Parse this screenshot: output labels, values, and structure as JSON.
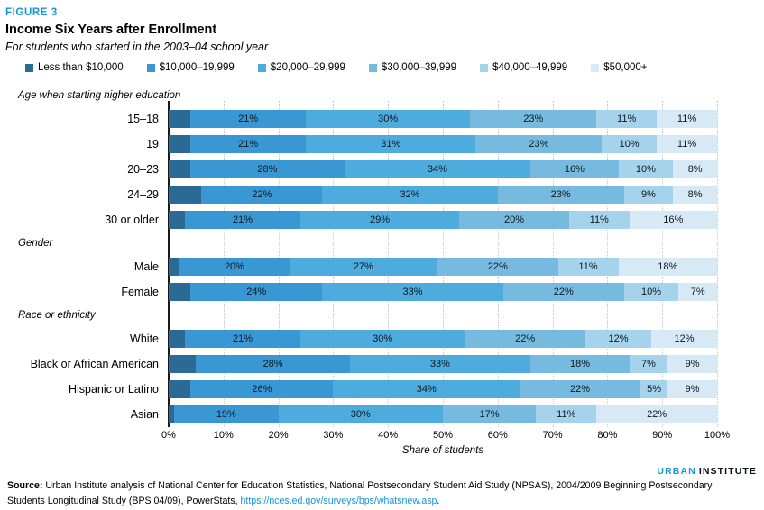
{
  "figure": {
    "label": "FIGURE 3",
    "title": "Income Six Years after Enrollment",
    "subtitle": "For students who started in the 2003–04 school year"
  },
  "colors": {
    "accent": "#1696d2",
    "series": [
      "#2b6a95",
      "#3997d3",
      "#4dabde",
      "#76badf",
      "#a5d3eb",
      "#d6e9f5"
    ]
  },
  "chart_data": {
    "type": "bar",
    "stacked": true,
    "orientation": "horizontal",
    "title": "Income Six Years after Enrollment",
    "xlabel": "Share of students",
    "xlim": [
      0,
      100
    ],
    "x_ticks": [
      "0%",
      "10%",
      "20%",
      "30%",
      "40%",
      "50%",
      "60%",
      "70%",
      "80%",
      "90%",
      "100%"
    ],
    "grid": "dotted-vertical",
    "legend_position": "top",
    "series_names": [
      "Less than $10,000",
      "$10,000–19,999",
      "$20,000–29,999",
      "$30,000–39,999",
      "$40,000–49,999",
      "$50,000+"
    ],
    "groups": [
      {
        "section": "Age when starting higher education",
        "rows": [
          {
            "label": "15–18",
            "values": [
              4,
              21,
              30,
              23,
              11,
              11
            ]
          },
          {
            "label": "19",
            "values": [
              4,
              21,
              31,
              23,
              10,
              11
            ]
          },
          {
            "label": "20–23",
            "values": [
              4,
              28,
              34,
              16,
              10,
              8
            ]
          },
          {
            "label": "24–29",
            "values": [
              6,
              22,
              32,
              23,
              9,
              8
            ]
          },
          {
            "label": "30 or older",
            "values": [
              3,
              21,
              29,
              20,
              11,
              16
            ]
          }
        ]
      },
      {
        "section": "Gender",
        "rows": [
          {
            "label": "Male",
            "values": [
              2,
              20,
              27,
              22,
              11,
              18
            ]
          },
          {
            "label": "Female",
            "values": [
              4,
              24,
              33,
              22,
              10,
              7
            ]
          }
        ]
      },
      {
        "section": "Race or ethnicity",
        "rows": [
          {
            "label": "White",
            "values": [
              3,
              21,
              30,
              22,
              12,
              12
            ]
          },
          {
            "label": "Black or African American",
            "values": [
              5,
              28,
              33,
              18,
              7,
              9
            ]
          },
          {
            "label": "Hispanic or Latino",
            "values": [
              4,
              26,
              34,
              22,
              5,
              9
            ]
          },
          {
            "label": "Asian",
            "values": [
              1,
              19,
              30,
              17,
              11,
              22
            ]
          }
        ]
      }
    ]
  },
  "footer": {
    "logo": {
      "urban": "URBAN",
      "institute": "INSTITUTE"
    },
    "source_label": "Source:",
    "source_text": " Urban Institute analysis of National Center for Education Statistics, National Postsecondary Student Aid Study (NPSAS), 2004/2009 Beginning Postsecondary Students Longitudinal Study (BPS 04/09), PowerStats, ",
    "source_link": "https://nces.ed.gov/surveys/bps/whatsnew.asp",
    "source_suffix": "."
  }
}
